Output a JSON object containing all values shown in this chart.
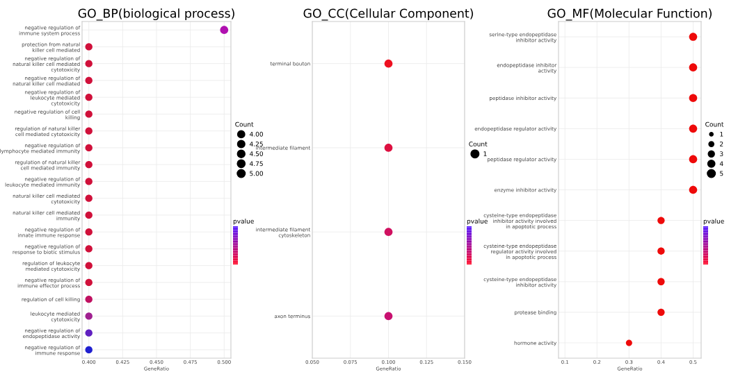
{
  "chart_data": [
    {
      "type": "bubble",
      "orientation": "horizontal",
      "title": "GO_BP(biological process)",
      "xlabel": "GeneRatio",
      "legend_title": "Count",
      "clabel": "pvalue",
      "grid": true,
      "marker": "circle",
      "categories": [
        "negative regulation of\nimmune system process",
        "protection from natural\nkiller cell mediated",
        "negative regulation of\nnatural killer cell mediated\ncytotoxicity",
        "negative regulation of\nnatural killer cell mediated",
        "negative regulation of\nleukocyte mediated\ncytotoxicity",
        "negative regulation of cell\nkilling",
        "regulation of natural killer\ncell mediated cytotoxicity",
        "negative regulation of\nlymphocyte mediated immunity",
        "regulation of natural killer\ncell mediated immunity",
        "negative regulation of\nleukocyte mediated immunity",
        "natural killer cell mediated\ncytotoxicity",
        "natural killer cell mediated\nimmunity",
        "negative regulation of\ninnate immune response",
        "negative regulation of\nresponse to biotic stimulus",
        "regulation of leukocyte\nmediated cytotoxicity",
        "negative regulation of\nimmune effector process",
        "regulation of cell killing",
        "leukocyte mediated\ncytotoxicity",
        "negative regulation of\nendopeptidase activity",
        "negative regulation of\nimmune response"
      ],
      "values": [
        0.5,
        0.4,
        0.4,
        0.4,
        0.4,
        0.4,
        0.4,
        0.4,
        0.4,
        0.4,
        0.4,
        0.4,
        0.4,
        0.4,
        0.4,
        0.4,
        0.4,
        0.4,
        0.4,
        0.4
      ],
      "sizes": [
        5,
        4,
        4,
        4,
        4,
        4,
        4,
        4,
        4,
        4,
        4,
        4,
        4,
        4,
        4,
        4,
        4,
        4,
        4,
        4
      ],
      "size_legend": [
        {
          "value": 4,
          "label": "4.00"
        },
        {
          "value": 4.25,
          "label": "4.25"
        },
        {
          "value": 4.5,
          "label": "4.50"
        },
        {
          "value": 4.75,
          "label": "4.75"
        },
        {
          "value": 5,
          "label": "5.00"
        }
      ],
      "colors": [
        "#b010b0",
        "#d0103a",
        "#d0103a",
        "#d0103a",
        "#d0103a",
        "#d0103a",
        "#d0103a",
        "#d0103a",
        "#d0103a",
        "#d0103a",
        "#d0103a",
        "#d0103a",
        "#d0103a",
        "#d0103a",
        "#d0103a",
        "#d0103a",
        "#c01060",
        "#a02090",
        "#6020c0",
        "#2020d0"
      ],
      "xlim": [
        0.395,
        0.505
      ],
      "xticks": [
        {
          "value": 0.4,
          "label": "0.400"
        },
        {
          "value": 0.425,
          "label": "0.425"
        },
        {
          "value": 0.45,
          "label": "0.450"
        },
        {
          "value": 0.475,
          "label": "0.475"
        },
        {
          "value": 0.5,
          "label": "0.500"
        }
      ]
    },
    {
      "type": "bubble",
      "orientation": "horizontal",
      "title": "GO_CC(Cellular Component)",
      "xlabel": "GeneRatio",
      "legend_title": "Count",
      "clabel": "pvalue",
      "grid": true,
      "marker": "circle",
      "categories": [
        "terminal bouton",
        "intermediate filament",
        "intermediate filament\ncytoskeleton",
        "axon terminus"
      ],
      "values": [
        0.1,
        0.1,
        0.1,
        0.1
      ],
      "sizes": [
        1,
        1,
        1,
        1
      ],
      "size_legend": [
        1
      ],
      "colors": [
        "#ee1020",
        "#dd1040",
        "#d01060",
        "#c81070"
      ],
      "xlim": [
        0.05,
        0.15
      ],
      "xticks": [
        {
          "value": 0.05,
          "label": "0.050"
        },
        {
          "value": 0.075,
          "label": "0.075"
        },
        {
          "value": 0.1,
          "label": "0.100"
        },
        {
          "value": 0.125,
          "label": "0.125"
        },
        {
          "value": 0.15,
          "label": "0.150"
        }
      ]
    },
    {
      "type": "bubble",
      "orientation": "horizontal",
      "title": "GO_MF(Molecular Function)",
      "xlabel": "GeneRatio",
      "legend_title": "Count",
      "clabel": "pvalue",
      "grid": true,
      "marker": "circle",
      "categories": [
        "serine-type endopeptidase\ninhibitor activity",
        "endopeptidase inhibitor\nactivity",
        "peptidase inhibitor activity",
        "endopeptidase regulator activity",
        "peptidase regulator activity",
        "enzyme inhibitor activity",
        "cysteine-type endopeptidase\ninhibitor activity involved\nin apoptotic process",
        "cysteine-type endopeptidase\nregulator activity involved\nin apoptotic process",
        "cysteine-type endopeptidase\ninhibitor activity",
        "protease binding",
        "hormone activity"
      ],
      "values": [
        0.5,
        0.5,
        0.5,
        0.5,
        0.5,
        0.5,
        0.4,
        0.4,
        0.4,
        0.4,
        0.3
      ],
      "sizes": [
        5,
        5,
        5,
        5,
        5,
        5,
        4,
        4,
        4,
        4,
        3
      ],
      "size_legend": [
        1,
        2,
        3,
        4,
        5
      ],
      "colors": [
        "#ee0a0a",
        "#ee0a0a",
        "#ee0a0a",
        "#ee0a0a",
        "#ee0a0a",
        "#ee0a0a",
        "#ee0a0a",
        "#ee0a0a",
        "#ee0a0a",
        "#ee0a0a",
        "#ee0a0a"
      ],
      "xlim": [
        0.08,
        0.525
      ],
      "xticks": [
        0.1,
        0.2,
        0.3,
        0.4,
        0.5
      ]
    }
  ]
}
